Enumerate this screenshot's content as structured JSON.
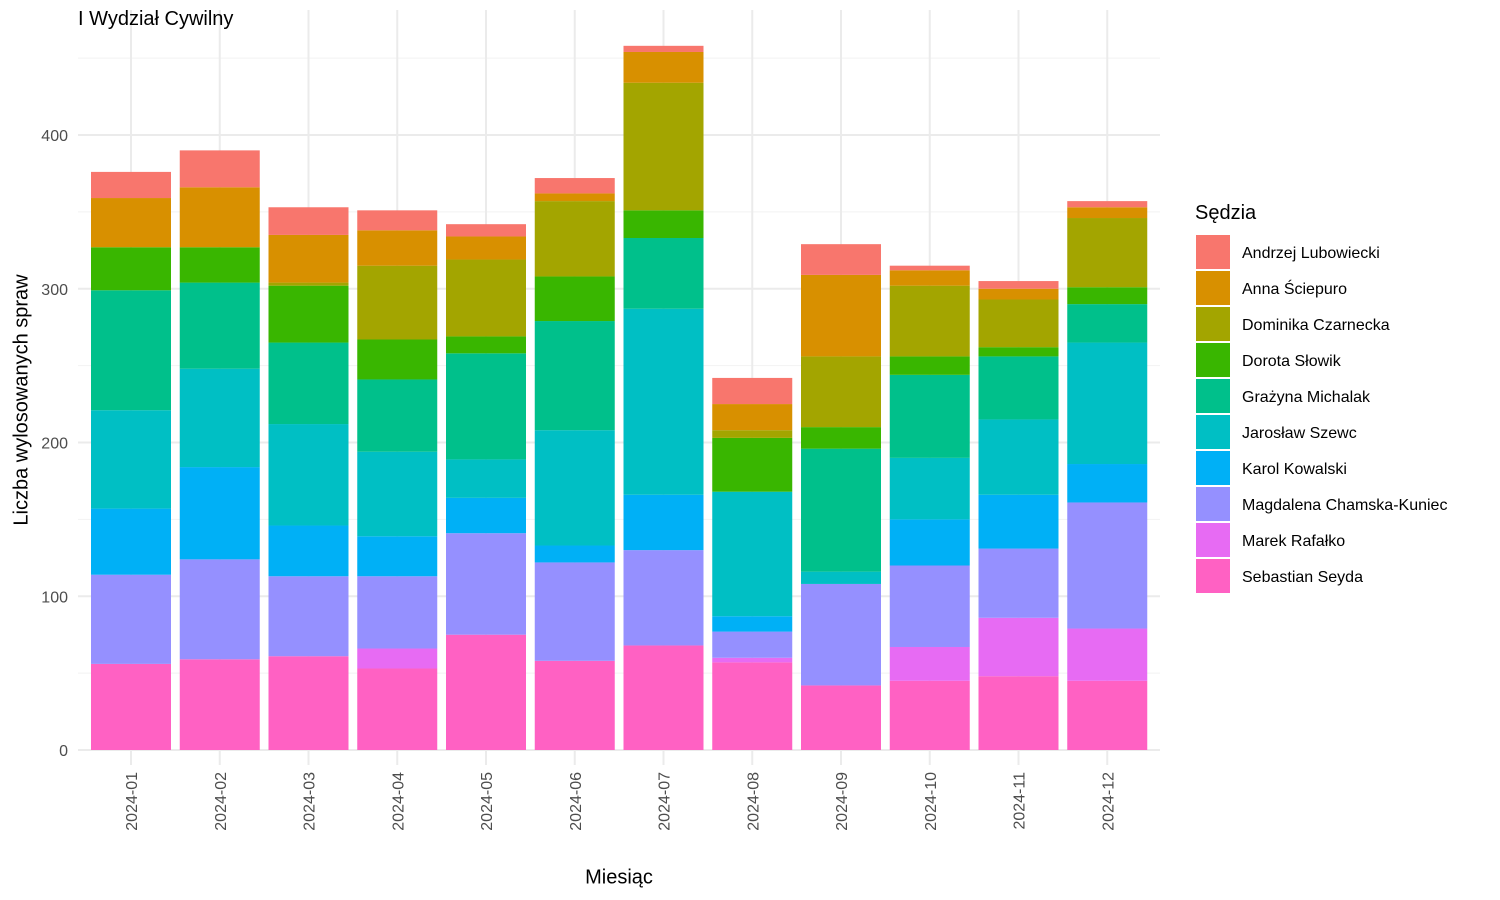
{
  "chart_data": {
    "type": "bar",
    "stacked": true,
    "title": "I Wydział Cywilny",
    "xlabel": "Miesiąc",
    "ylabel": "Liczba wylosowanych spraw",
    "ylim": [
      0,
      460
    ],
    "yticks": [
      0,
      100,
      200,
      300,
      400
    ],
    "grid": true,
    "legend_title": "Sędzia",
    "legend_position": "right",
    "categories": [
      "2024-01",
      "2024-02",
      "2024-03",
      "2024-04",
      "2024-05",
      "2024-06",
      "2024-07",
      "2024-08",
      "2024-09",
      "2024-10",
      "2024-11",
      "2024-12"
    ],
    "series": [
      {
        "name": "Sebastian Seyda",
        "color": "#FF61C3",
        "values": [
          56,
          59,
          61,
          53,
          75,
          58,
          68,
          57,
          42,
          45,
          48,
          45
        ]
      },
      {
        "name": "Marek Rafałko",
        "color": "#E76BF3",
        "values": [
          0,
          0,
          0,
          13,
          0,
          0,
          0,
          3,
          0,
          22,
          38,
          34
        ]
      },
      {
        "name": "Magdalena Chamska-Kuniec",
        "color": "#9590FF",
        "values": [
          58,
          65,
          52,
          47,
          66,
          64,
          62,
          17,
          66,
          53,
          45,
          82
        ]
      },
      {
        "name": "Karol Kowalski",
        "color": "#00B0F6",
        "values": [
          43,
          60,
          33,
          26,
          23,
          11,
          36,
          10,
          0,
          30,
          35,
          25
        ]
      },
      {
        "name": "Jarosław Szewc",
        "color": "#00BFC4",
        "values": [
          64,
          64,
          66,
          55,
          25,
          75,
          121,
          81,
          8,
          40,
          49,
          79
        ]
      },
      {
        "name": "Grażyna Michalak",
        "color": "#00C08B",
        "values": [
          78,
          56,
          53,
          47,
          69,
          71,
          46,
          0,
          80,
          54,
          41,
          25
        ]
      },
      {
        "name": "Dorota Słowik",
        "color": "#39B600",
        "values": [
          28,
          23,
          37,
          26,
          11,
          29,
          18,
          35,
          14,
          12,
          6,
          11
        ]
      },
      {
        "name": "Dominika Czarnecka",
        "color": "#A3A500",
        "values": [
          0,
          0,
          2,
          48,
          50,
          49,
          83,
          5,
          46,
          46,
          31,
          45
        ]
      },
      {
        "name": "Anna Ściepuro",
        "color": "#D89000",
        "values": [
          32,
          39,
          31,
          23,
          15,
          5,
          20,
          17,
          53,
          10,
          7,
          7
        ]
      },
      {
        "name": "Andrzej Lubowiecki",
        "color": "#F8766D",
        "values": [
          17,
          24,
          18,
          13,
          8,
          10,
          4,
          17,
          20,
          3,
          5,
          4
        ]
      }
    ],
    "legend_order": [
      "Andrzej Lubowiecki",
      "Anna Ściepuro",
      "Dominika Czarnecka",
      "Dorota Słowik",
      "Grażyna Michalak",
      "Jarosław Szewc",
      "Karol Kowalski",
      "Magdalena Chamska-Kuniec",
      "Marek Rafałko",
      "Sebastian Seyda"
    ]
  }
}
